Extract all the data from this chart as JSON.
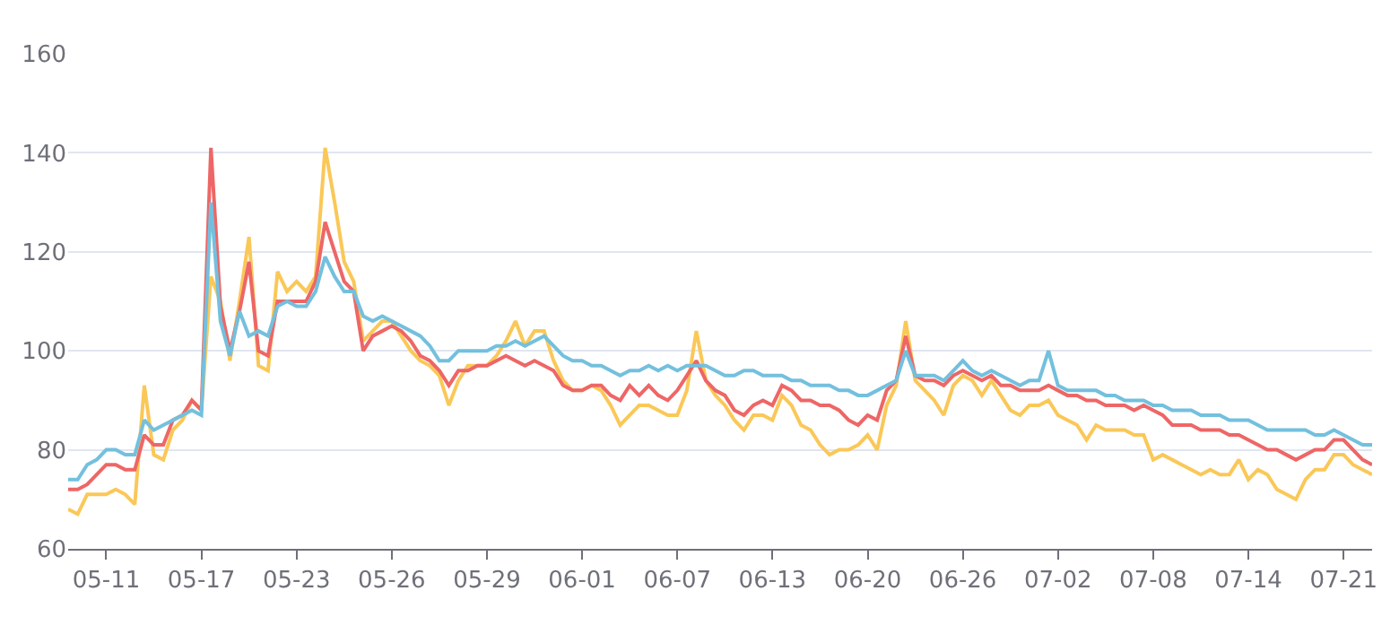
{
  "chart_data": {
    "type": "line",
    "categories": [
      null,
      null,
      null,
      null,
      "05-11",
      null,
      null,
      null,
      null,
      null,
      null,
      null,
      null,
      null,
      "05-17",
      null,
      null,
      null,
      null,
      null,
      null,
      null,
      null,
      null,
      "05-23",
      null,
      null,
      null,
      null,
      null,
      null,
      null,
      null,
      null,
      "05-26",
      null,
      null,
      null,
      null,
      null,
      null,
      null,
      null,
      null,
      "05-29",
      null,
      null,
      null,
      null,
      null,
      null,
      null,
      null,
      null,
      "06-01",
      null,
      null,
      null,
      null,
      null,
      null,
      null,
      null,
      null,
      "06-07",
      null,
      null,
      null,
      null,
      null,
      null,
      null,
      null,
      null,
      "06-13",
      null,
      null,
      null,
      null,
      null,
      null,
      null,
      null,
      null,
      "06-20",
      null,
      null,
      null,
      null,
      null,
      null,
      null,
      null,
      null,
      "06-26",
      null,
      null,
      null,
      null,
      null,
      null,
      null,
      null,
      null,
      "07-02",
      null,
      null,
      null,
      null,
      null,
      null,
      null,
      null,
      null,
      "07-08",
      null,
      null,
      null,
      null,
      null,
      null,
      null,
      null,
      null,
      "07-14",
      null,
      null,
      null,
      null,
      null,
      null,
      null,
      null,
      null,
      "07-21",
      null,
      null,
      null
    ],
    "series": [
      {
        "color": "#fac858",
        "values": [
          68,
          67,
          71,
          71,
          71,
          72,
          71,
          69,
          93,
          79,
          78,
          84,
          86,
          90,
          88,
          115,
          110,
          98,
          110,
          123,
          97,
          96,
          116,
          112,
          114,
          112,
          115,
          141,
          130,
          118,
          114,
          102,
          104,
          106,
          106,
          103,
          100,
          98,
          97,
          95,
          89,
          94,
          97,
          97,
          97,
          99,
          102,
          106,
          101,
          104,
          104,
          98,
          94,
          92,
          92,
          93,
          92,
          89,
          85,
          87,
          89,
          89,
          88,
          87,
          87,
          92,
          104,
          94,
          91,
          89,
          86,
          84,
          87,
          87,
          86,
          91,
          89,
          85,
          84,
          81,
          79,
          80,
          80,
          81,
          83,
          80,
          89,
          93,
          106,
          94,
          92,
          90,
          87,
          93,
          95,
          94,
          91,
          94,
          91,
          88,
          87,
          89,
          89,
          90,
          87,
          86,
          85,
          82,
          85,
          84,
          84,
          84,
          83,
          83,
          78,
          79,
          78,
          77,
          76,
          75,
          76,
          75,
          75,
          78,
          74,
          76,
          75,
          72,
          71,
          70,
          74,
          76,
          76,
          79,
          79,
          77,
          76,
          75
        ]
      },
      {
        "color": "#ee6666",
        "values": [
          72,
          72,
          73,
          75,
          77,
          77,
          76,
          76,
          83,
          81,
          81,
          86,
          87,
          90,
          88,
          141,
          109,
          100,
          108,
          118,
          100,
          99,
          110,
          110,
          110,
          110,
          114,
          126,
          120,
          114,
          112,
          100,
          103,
          104,
          105,
          104,
          102,
          99,
          98,
          96,
          93,
          96,
          96,
          97,
          97,
          98,
          99,
          98,
          97,
          98,
          97,
          96,
          93,
          92,
          92,
          93,
          93,
          91,
          90,
          93,
          91,
          93,
          91,
          90,
          92,
          95,
          98,
          94,
          92,
          91,
          88,
          87,
          89,
          90,
          89,
          93,
          92,
          90,
          90,
          89,
          89,
          88,
          86,
          85,
          87,
          86,
          92,
          94,
          103,
          95,
          94,
          94,
          93,
          95,
          96,
          95,
          94,
          95,
          93,
          93,
          92,
          92,
          92,
          93,
          92,
          91,
          91,
          90,
          90,
          89,
          89,
          89,
          88,
          89,
          88,
          87,
          85,
          85,
          85,
          84,
          84,
          84,
          83,
          83,
          82,
          81,
          80,
          80,
          79,
          78,
          79,
          80,
          80,
          82,
          82,
          80,
          78,
          77
        ]
      },
      {
        "color": "#73c0de",
        "values": [
          74,
          74,
          77,
          78,
          80,
          80,
          79,
          79,
          86,
          84,
          85,
          86,
          87,
          88,
          87,
          130,
          106,
          99,
          108,
          103,
          104,
          103,
          109,
          110,
          109,
          109,
          112,
          119,
          115,
          112,
          112,
          107,
          106,
          107,
          106,
          105,
          104,
          103,
          101,
          98,
          98,
          100,
          100,
          100,
          100,
          101,
          101,
          102,
          101,
          102,
          103,
          101,
          99,
          98,
          98,
          97,
          97,
          96,
          95,
          96,
          96,
          97,
          96,
          97,
          96,
          97,
          97,
          97,
          96,
          95,
          95,
          96,
          96,
          95,
          95,
          95,
          94,
          94,
          93,
          93,
          93,
          92,
          92,
          91,
          91,
          92,
          93,
          94,
          100,
          95,
          95,
          95,
          94,
          96,
          98,
          96,
          95,
          96,
          95,
          94,
          93,
          94,
          94,
          100,
          93,
          92,
          92,
          92,
          92,
          91,
          91,
          90,
          90,
          90,
          89,
          89,
          88,
          88,
          88,
          87,
          87,
          87,
          86,
          86,
          86,
          85,
          84,
          84,
          84,
          84,
          84,
          83,
          83,
          84,
          83,
          82,
          81,
          81
        ]
      }
    ],
    "ylim": [
      60,
      160
    ],
    "yticks": [
      60,
      80,
      100,
      120,
      140,
      160
    ],
    "grid": "y",
    "marker": "none",
    "line_style": "solid"
  }
}
